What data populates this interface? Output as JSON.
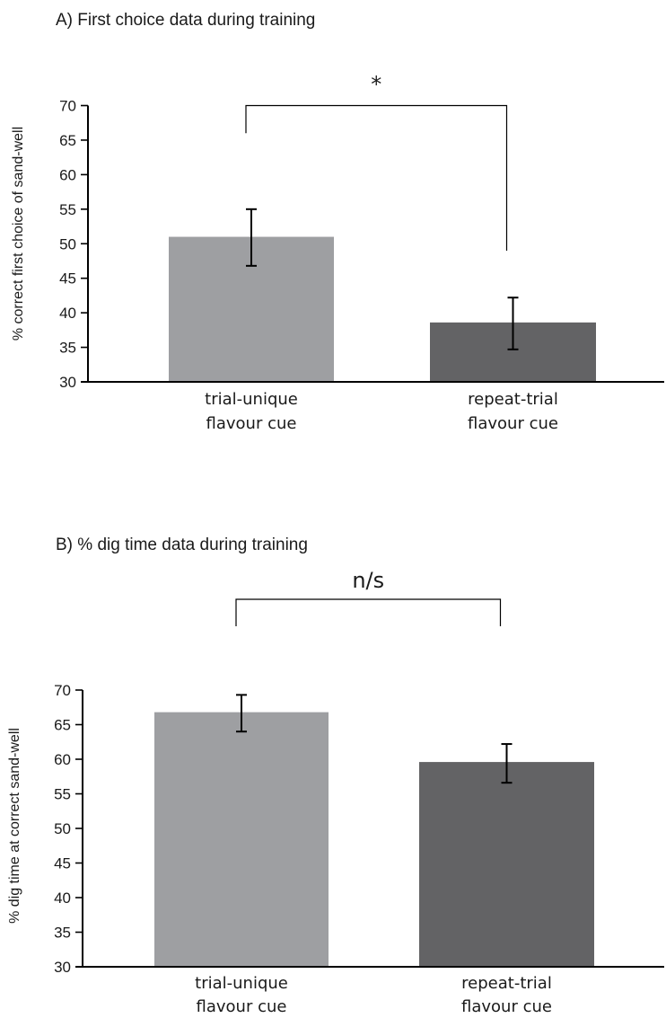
{
  "chart_data": [
    {
      "type": "bar",
      "title": "A) First choice data during training",
      "ylabel": "% correct first choice of sand-well",
      "xlabel": "",
      "ylim": [
        30,
        70
      ],
      "yticks": [
        30,
        35,
        40,
        45,
        50,
        55,
        60,
        65,
        70
      ],
      "grid": false,
      "categories": [
        [
          "trial-unique",
          "flavour cue"
        ],
        [
          "repeat-trial",
          "flavour cue"
        ]
      ],
      "values": [
        51,
        38.6
      ],
      "error": [
        {
          "low": 46.8,
          "high": 55
        },
        {
          "low": 34.7,
          "high": 42.2
        }
      ],
      "colors": [
        "#9e9fa2",
        "#636365"
      ],
      "significance": {
        "label": "*",
        "left_base": 66,
        "right_base": 49
      }
    },
    {
      "type": "bar",
      "title": "B) % dig time data during training",
      "ylabel": "% dig time at correct sand-well",
      "xlabel": "",
      "ylim": [
        30,
        70
      ],
      "yticks": [
        30,
        35,
        40,
        45,
        50,
        55,
        60,
        65,
        70
      ],
      "grid": false,
      "categories": [
        [
          "trial-unique",
          "flavour cue"
        ],
        [
          "repeat-trial",
          "flavour cue"
        ]
      ],
      "values": [
        66.8,
        59.6
      ],
      "error": [
        {
          "low": 64,
          "high": 69.3
        },
        {
          "low": 56.6,
          "high": 62.2
        }
      ],
      "colors": [
        "#9e9fa2",
        "#636365"
      ],
      "significance": {
        "label": "n/s"
      }
    }
  ]
}
